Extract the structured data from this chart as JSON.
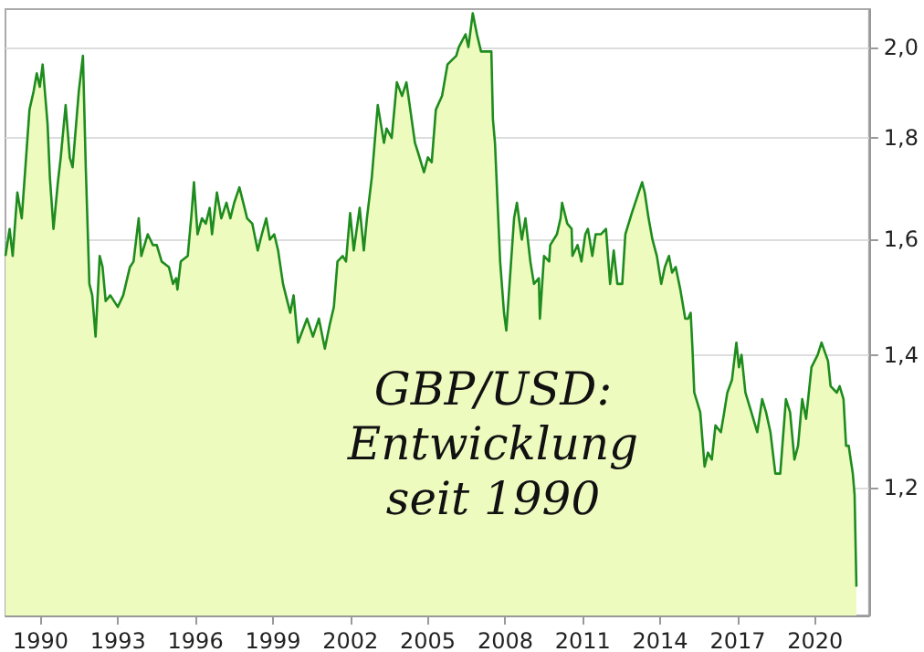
{
  "chart_data": {
    "type": "area",
    "title": "GBP/USD:\nEntwicklung\nseit 1990",
    "x": [
      1989.14,
      1989.3,
      1989.42,
      1989.6,
      1989.77,
      1990.07,
      1990.23,
      1990.35,
      1990.47,
      1990.58,
      1990.77,
      1990.86,
      1991.0,
      1991.17,
      1991.28,
      1991.47,
      1991.63,
      1991.74,
      1991.98,
      1992.14,
      1992.25,
      1992.39,
      1992.5,
      1992.63,
      1992.79,
      1992.9,
      1993.02,
      1993.2,
      1993.49,
      1993.7,
      1993.96,
      1994.1,
      1994.3,
      1994.4,
      1994.65,
      1994.85,
      1995.0,
      1995.19,
      1995.47,
      1995.63,
      1995.75,
      1995.8,
      1995.93,
      1996.2,
      1996.35,
      1996.44,
      1996.58,
      1996.75,
      1996.9,
      1997.05,
      1997.14,
      1997.33,
      1997.5,
      1997.7,
      1997.85,
      1998.0,
      1998.2,
      1998.4,
      1998.5,
      1998.7,
      1998.91,
      1999.07,
      1999.24,
      1999.38,
      1999.55,
      1999.7,
      1999.89,
      2000.0,
      2000.17,
      2000.3,
      2000.47,
      2000.82,
      2001.05,
      2001.28,
      2001.51,
      2001.7,
      2001.86,
      2002.0,
      2002.2,
      2002.33,
      2002.49,
      2002.63,
      2002.86,
      2003.02,
      2003.14,
      2003.33,
      2003.56,
      2003.8,
      2003.9,
      2004.1,
      2004.3,
      2004.5,
      2004.67,
      2004.77,
      2005.0,
      2005.12,
      2005.35,
      2005.5,
      2005.65,
      2005.81,
      2006.05,
      2006.26,
      2006.6,
      2006.7,
      2006.96,
      2007.07,
      2007.24,
      2007.4,
      2007.56,
      2007.96,
      2008.02,
      2008.1,
      2008.3,
      2008.45,
      2008.54,
      2008.84,
      2008.95,
      2009.14,
      2009.28,
      2009.47,
      2009.61,
      2009.8,
      2009.84,
      2010.0,
      2010.2,
      2010.24,
      2010.5,
      2010.64,
      2010.7,
      2010.9,
      2011.07,
      2011.1,
      2011.3,
      2011.45,
      2011.6,
      2011.7,
      2011.87,
      2012.0,
      2012.2,
      2012.4,
      2012.56,
      2012.7,
      2012.84,
      2013.03,
      2013.15,
      2013.4,
      2013.6,
      2013.8,
      2013.9,
      2014.05,
      2014.2,
      2014.37,
      2014.54,
      2014.68,
      2014.84,
      2014.96,
      2015.1,
      2015.28,
      2015.47,
      2015.58,
      2015.68,
      2015.75,
      2015.82,
      2016.05,
      2016.22,
      2016.35,
      2016.5,
      2016.64,
      2016.85,
      2016.98,
      2017.1,
      2017.28,
      2017.45,
      2017.55,
      2017.65,
      2017.8,
      2018.03,
      2018.26,
      2018.45,
      2018.6,
      2018.77,
      2018.96,
      2019.15,
      2019.37,
      2019.53,
      2019.7,
      2019.84,
      2020.0,
      2020.15,
      2020.36,
      2020.6,
      2020.75,
      2021.0,
      2021.1,
      2021.34,
      2021.45,
      2021.6,
      2021.7,
      2021.8,
      2021.96,
      2022.03,
      2022.1
    ],
    "series": [
      {
        "color": "#1e8c1e",
        "values": [
          1.57,
          1.62,
          1.57,
          1.69,
          1.64,
          1.86,
          1.9,
          1.94,
          1.91,
          1.96,
          1.83,
          1.72,
          1.62,
          1.71,
          1.76,
          1.87,
          1.76,
          1.74,
          1.9,
          1.98,
          1.74,
          1.52,
          1.5,
          1.43,
          1.57,
          1.55,
          1.49,
          1.5,
          1.48,
          1.5,
          1.55,
          1.56,
          1.64,
          1.57,
          1.61,
          1.59,
          1.59,
          1.56,
          1.55,
          1.52,
          1.53,
          1.51,
          1.56,
          1.57,
          1.65,
          1.71,
          1.61,
          1.64,
          1.63,
          1.66,
          1.61,
          1.69,
          1.64,
          1.67,
          1.64,
          1.67,
          1.7,
          1.66,
          1.64,
          1.63,
          1.58,
          1.61,
          1.64,
          1.6,
          1.61,
          1.58,
          1.52,
          1.5,
          1.47,
          1.5,
          1.42,
          1.46,
          1.43,
          1.46,
          1.41,
          1.45,
          1.48,
          1.56,
          1.57,
          1.56,
          1.65,
          1.58,
          1.66,
          1.58,
          1.64,
          1.72,
          1.87,
          1.79,
          1.82,
          1.8,
          1.92,
          1.89,
          1.92,
          1.88,
          1.79,
          1.77,
          1.73,
          1.76,
          1.75,
          1.86,
          1.89,
          1.96,
          1.98,
          2.0,
          2.03,
          2.0,
          2.08,
          2.03,
          1.99,
          1.99,
          1.84,
          1.79,
          1.56,
          1.47,
          1.44,
          1.64,
          1.67,
          1.6,
          1.64,
          1.56,
          1.52,
          1.53,
          1.46,
          1.57,
          1.56,
          1.59,
          1.61,
          1.64,
          1.67,
          1.63,
          1.62,
          1.57,
          1.59,
          1.56,
          1.61,
          1.62,
          1.57,
          1.61,
          1.61,
          1.62,
          1.52,
          1.58,
          1.52,
          1.52,
          1.61,
          1.65,
          1.68,
          1.71,
          1.69,
          1.64,
          1.6,
          1.57,
          1.52,
          1.55,
          1.57,
          1.54,
          1.55,
          1.51,
          1.46,
          1.46,
          1.47,
          1.41,
          1.34,
          1.31,
          1.23,
          1.25,
          1.24,
          1.29,
          1.28,
          1.31,
          1.34,
          1.36,
          1.42,
          1.38,
          1.4,
          1.34,
          1.31,
          1.28,
          1.33,
          1.31,
          1.28,
          1.22,
          1.22,
          1.33,
          1.31,
          1.24,
          1.26,
          1.33,
          1.3,
          1.38,
          1.4,
          1.42,
          1.39,
          1.35,
          1.34,
          1.35,
          1.33,
          1.26,
          1.26,
          1.22,
          1.19,
          1.07
        ]
      }
    ],
    "xlim": [
      1989.14,
      2022.59
    ],
    "xticks": [
      {
        "value": 1990.5,
        "label": "1990"
      },
      {
        "value": 1993.5,
        "label": "1993"
      },
      {
        "value": 1996.5,
        "label": "1996"
      },
      {
        "value": 1999.5,
        "label": "1999"
      },
      {
        "value": 2002.5,
        "label": "2002"
      },
      {
        "value": 2005.5,
        "label": "2005"
      },
      {
        "value": 2008.5,
        "label": "2008"
      },
      {
        "value": 2011.5,
        "label": "2011"
      },
      {
        "value": 2014.5,
        "label": "2014"
      },
      {
        "value": 2017.5,
        "label": "2017"
      },
      {
        "value": 2020.5,
        "label": "2020"
      }
    ],
    "ylim": [
      1.035,
      2.09
    ],
    "yticks": [
      {
        "value": 1.2,
        "label": "1,2"
      },
      {
        "value": 1.4,
        "label": "1,4"
      },
      {
        "value": 1.6,
        "label": "1,6"
      },
      {
        "value": 1.8,
        "label": "1,8"
      },
      {
        "value": 2.0,
        "label": "2,0"
      }
    ],
    "log": "y",
    "grid": "y",
    "marker": "none",
    "line_style": "solid"
  }
}
